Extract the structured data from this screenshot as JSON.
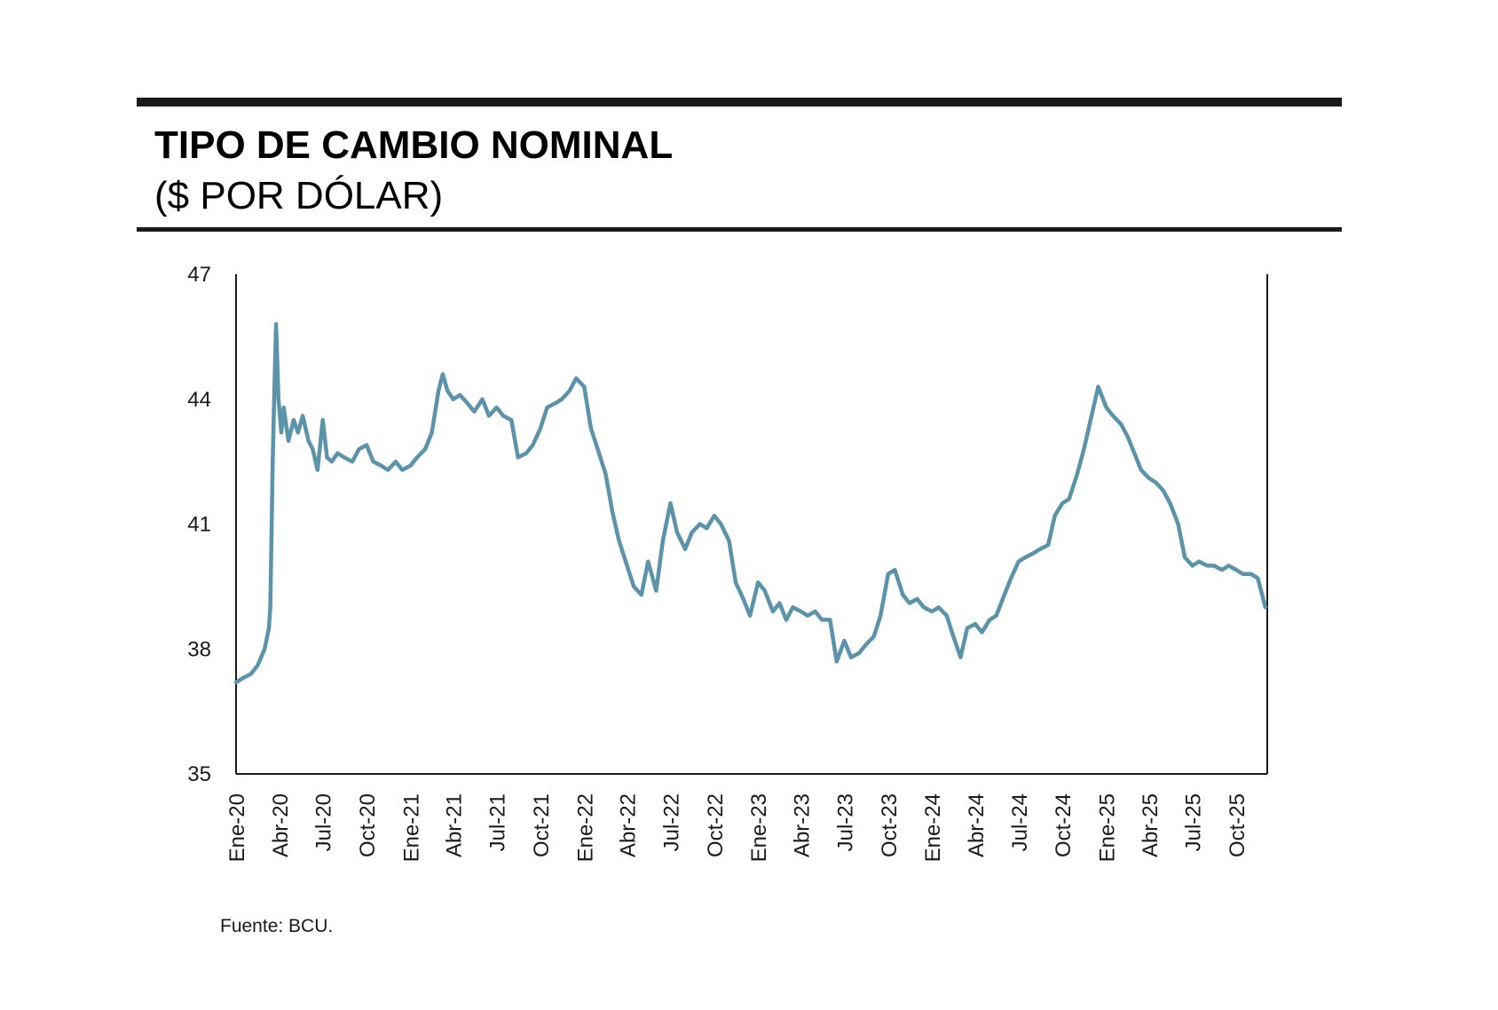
{
  "chart_data": {
    "type": "line",
    "title": "TIPO DE CAMBIO NOMINAL",
    "subtitle": "($ POR DÓLAR)",
    "source": "Fuente: BCU.",
    "xlabel": "",
    "ylabel": "",
    "ylim": [
      35,
      47
    ],
    "yticks": [
      35,
      38,
      41,
      44,
      47
    ],
    "xlim": [
      "2020-01-01",
      "2025-12-05"
    ],
    "xticks": [
      {
        "date": "2020-01-01",
        "label": "Ene-20"
      },
      {
        "date": "2020-04-01",
        "label": "Abr-20"
      },
      {
        "date": "2020-07-01",
        "label": "Jul-20"
      },
      {
        "date": "2020-10-01",
        "label": "Oct-20"
      },
      {
        "date": "2021-01-01",
        "label": "Ene-21"
      },
      {
        "date": "2021-04-01",
        "label": "Abr-21"
      },
      {
        "date": "2021-07-01",
        "label": "Jul-21"
      },
      {
        "date": "2021-10-01",
        "label": "Oct-21"
      },
      {
        "date": "2022-01-01",
        "label": "Ene-22"
      },
      {
        "date": "2022-04-01",
        "label": "Abr-22"
      },
      {
        "date": "2022-07-01",
        "label": "Jul-22"
      },
      {
        "date": "2022-10-01",
        "label": "Oct-22"
      },
      {
        "date": "2023-01-01",
        "label": "Ene-23"
      },
      {
        "date": "2023-04-01",
        "label": "Abr-23"
      },
      {
        "date": "2023-07-01",
        "label": "Jul-23"
      },
      {
        "date": "2023-10-01",
        "label": "Oct-23"
      },
      {
        "date": "2024-01-01",
        "label": "Ene-24"
      },
      {
        "date": "2024-04-01",
        "label": "Abr-24"
      },
      {
        "date": "2024-07-01",
        "label": "Jul-24"
      },
      {
        "date": "2024-10-01",
        "label": "Oct-24"
      },
      {
        "date": "2025-01-01",
        "label": "Ene-25"
      },
      {
        "date": "2025-04-01",
        "label": "Abr-25"
      },
      {
        "date": "2025-07-01",
        "label": "Jul-25"
      },
      {
        "date": "2025-10-01",
        "label": "Oct-25"
      }
    ],
    "grid": false,
    "colors": {
      "line": "#5b93aa",
      "axis": "#1a1a1a",
      "rule": "#1a1a1a"
    },
    "series": [
      {
        "x": [
          "2020-01-01",
          "2020-01-15",
          "2020-02-01",
          "2020-02-15",
          "2020-03-01",
          "2020-03-10",
          "2020-03-13",
          "2020-03-18",
          "2020-03-22",
          "2020-03-25",
          "2020-03-30",
          "2020-04-05",
          "2020-04-10",
          "2020-04-20",
          "2020-05-01",
          "2020-05-10",
          "2020-05-20",
          "2020-06-01",
          "2020-06-10",
          "2020-06-20",
          "2020-07-01",
          "2020-07-10",
          "2020-07-20",
          "2020-08-01",
          "2020-08-15",
          "2020-09-01",
          "2020-09-15",
          "2020-10-01",
          "2020-10-15",
          "2020-11-01",
          "2020-11-15",
          "2020-12-01",
          "2020-12-15",
          "2021-01-01",
          "2021-01-15",
          "2021-02-01",
          "2021-02-15",
          "2021-03-01",
          "2021-03-10",
          "2021-03-20",
          "2021-04-01",
          "2021-04-15",
          "2021-05-01",
          "2021-05-15",
          "2021-06-01",
          "2021-06-15",
          "2021-07-01",
          "2021-07-15",
          "2021-08-01",
          "2021-08-15",
          "2021-09-01",
          "2021-09-15",
          "2021-10-01",
          "2021-10-15",
          "2021-11-01",
          "2021-11-15",
          "2021-12-01",
          "2021-12-15",
          "2022-01-01",
          "2022-01-15",
          "2022-02-01",
          "2022-02-15",
          "2022-03-01",
          "2022-03-15",
          "2022-04-01",
          "2022-04-15",
          "2022-05-01",
          "2022-05-15",
          "2022-06-01",
          "2022-06-15",
          "2022-07-01",
          "2022-07-15",
          "2022-08-01",
          "2022-08-15",
          "2022-09-01",
          "2022-09-15",
          "2022-10-01",
          "2022-10-15",
          "2022-11-01",
          "2022-11-15",
          "2022-12-01",
          "2022-12-15",
          "2023-01-01",
          "2023-01-15",
          "2023-02-01",
          "2023-02-15",
          "2023-03-01",
          "2023-03-15",
          "2023-04-01",
          "2023-04-15",
          "2023-05-01",
          "2023-05-15",
          "2023-06-01",
          "2023-06-15",
          "2023-07-01",
          "2023-07-15",
          "2023-08-01",
          "2023-08-15",
          "2023-09-01",
          "2023-09-15",
          "2023-10-01",
          "2023-10-15",
          "2023-11-01",
          "2023-11-15",
          "2023-12-01",
          "2023-12-15",
          "2024-01-01",
          "2024-01-15",
          "2024-02-01",
          "2024-02-15",
          "2024-03-01",
          "2024-03-15",
          "2024-04-01",
          "2024-04-15",
          "2024-05-01",
          "2024-05-15",
          "2024-06-01",
          "2024-06-15",
          "2024-07-01",
          "2024-07-15",
          "2024-08-01",
          "2024-08-15",
          "2024-09-01",
          "2024-09-15",
          "2024-10-01",
          "2024-10-15",
          "2024-11-01",
          "2024-11-15",
          "2024-12-01",
          "2024-12-15",
          "2025-01-01",
          "2025-01-15",
          "2025-02-01",
          "2025-02-15",
          "2025-03-01",
          "2025-03-15",
          "2025-04-01",
          "2025-04-15",
          "2025-05-01",
          "2025-05-15",
          "2025-06-01",
          "2025-06-15",
          "2025-07-01",
          "2025-07-15",
          "2025-08-01",
          "2025-08-15",
          "2025-09-01",
          "2025-09-15",
          "2025-10-01",
          "2025-10-15",
          "2025-11-01",
          "2025-11-15",
          "2025-12-01"
        ],
        "y": [
          37.2,
          37.3,
          37.4,
          37.6,
          38.0,
          38.5,
          39.0,
          42.5,
          44.5,
          45.8,
          44.0,
          43.2,
          43.8,
          43.0,
          43.5,
          43.2,
          43.6,
          43.0,
          42.8,
          42.3,
          43.5,
          42.6,
          42.5,
          42.7,
          42.6,
          42.5,
          42.8,
          42.9,
          42.5,
          42.4,
          42.3,
          42.5,
          42.3,
          42.4,
          42.6,
          42.8,
          43.2,
          44.2,
          44.6,
          44.2,
          44.0,
          44.1,
          43.9,
          43.7,
          44.0,
          43.6,
          43.8,
          43.6,
          43.5,
          42.6,
          42.7,
          42.9,
          43.3,
          43.8,
          43.9,
          44.0,
          44.2,
          44.5,
          44.3,
          43.3,
          42.7,
          42.2,
          41.3,
          40.6,
          40.0,
          39.5,
          39.3,
          40.1,
          39.4,
          40.6,
          41.5,
          40.8,
          40.4,
          40.8,
          41.0,
          40.9,
          41.2,
          41.0,
          40.6,
          39.6,
          39.2,
          38.8,
          39.6,
          39.4,
          38.9,
          39.1,
          38.7,
          39.0,
          38.9,
          38.8,
          38.9,
          38.7,
          38.7,
          37.7,
          38.2,
          37.8,
          37.9,
          38.1,
          38.3,
          38.8,
          39.8,
          39.9,
          39.3,
          39.1,
          39.2,
          39.0,
          38.9,
          39.0,
          38.8,
          38.3,
          37.8,
          38.5,
          38.6,
          38.4,
          38.7,
          38.8,
          39.3,
          39.7,
          40.1,
          40.2,
          40.3,
          40.4,
          40.5,
          41.2,
          41.5,
          41.6,
          42.2,
          42.8,
          43.6,
          44.3,
          43.8,
          43.6,
          43.4,
          43.1,
          42.7,
          42.3,
          42.1,
          42.0,
          41.8,
          41.5,
          41.0,
          40.2,
          40.0,
          40.1,
          40.0,
          40.0,
          39.9,
          40.0,
          39.9,
          39.8,
          39.8,
          39.7,
          39.0
        ]
      }
    ]
  }
}
